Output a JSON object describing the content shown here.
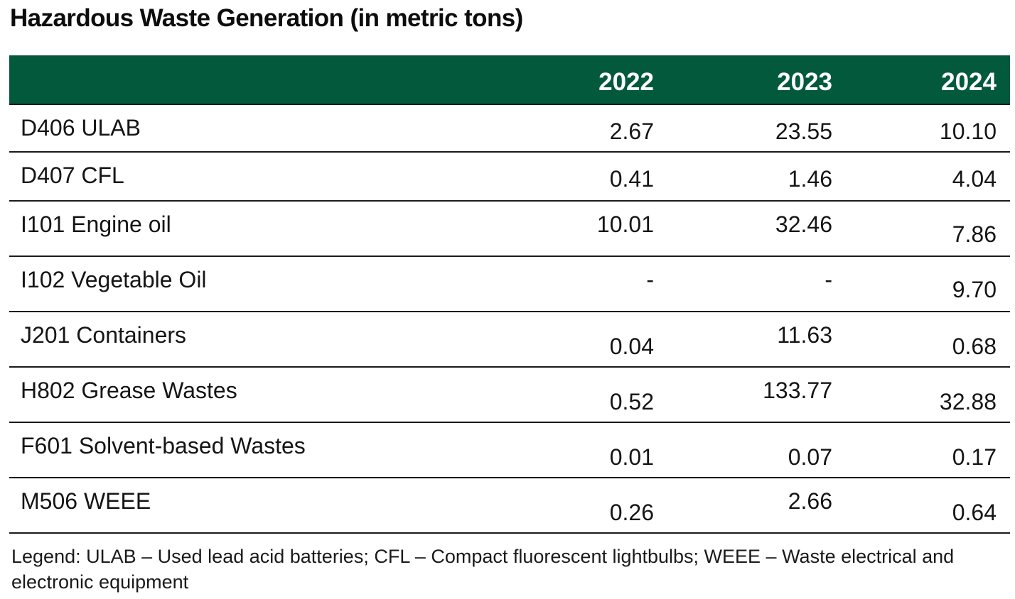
{
  "title": "Hazardous Waste Generation (in metric tons)",
  "colors": {
    "header_bg": "#03593b",
    "header_text": "#ffffff",
    "rule": "#1a1a1a"
  },
  "table": {
    "columns": [
      "",
      "2022",
      "2023",
      "2024"
    ],
    "rows": [
      {
        "label": "D406 ULAB",
        "v2022": "2.67",
        "v2023": "23.55",
        "v2024": "10.10"
      },
      {
        "label": "D407 CFL",
        "v2022": "0.41",
        "v2023": "1.46",
        "v2024": "4.04"
      },
      {
        "label": "I101 Engine oil",
        "v2022": "10.01",
        "v2023": "32.46",
        "v2024": "7.86"
      },
      {
        "label": "I102 Vegetable Oil",
        "v2022": "-",
        "v2023": "-",
        "v2024": "9.70"
      },
      {
        "label": "J201 Containers",
        "v2022": "0.04",
        "v2023": "11.63",
        "v2024": "0.68"
      },
      {
        "label": "H802 Grease Wastes",
        "v2022": "0.52",
        "v2023": "133.77",
        "v2024": "32.88"
      },
      {
        "label": "F601 Solvent-based Wastes",
        "v2022": "0.01",
        "v2023": "0.07",
        "v2024": "0.17"
      },
      {
        "label": "M506 WEEE",
        "v2022": "0.26",
        "v2023": "2.66",
        "v2024": "0.64"
      }
    ]
  },
  "legend": "Legend: ULAB – Used lead acid batteries; CFL – Compact fluorescent lightbulbs; WEEE – Waste electrical and electronic equipment"
}
